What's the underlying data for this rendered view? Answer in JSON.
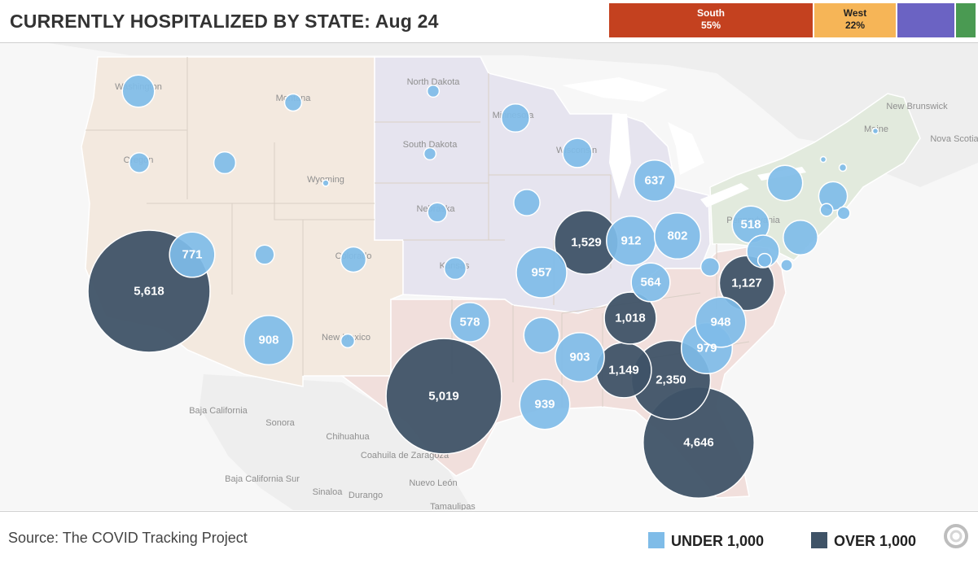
{
  "header": {
    "title": "CURRENTLY HOSPITALIZED BY STATE: Aug 24",
    "regions": [
      {
        "name": "South",
        "share": "55%",
        "color": "#c4411f",
        "text_color": "#ffffff"
      },
      {
        "name": "West",
        "share": "22%",
        "color": "#f6b557",
        "text_color": "#222222"
      },
      {
        "name": "",
        "share": "",
        "color": "#6b63c3",
        "text_color": "#ffffff"
      },
      {
        "name": "",
        "share": "",
        "color": "#4a9a52",
        "text_color": "#ffffff"
      }
    ]
  },
  "map": {
    "colors": {
      "under": "#7fbce8",
      "over": "#3f5367",
      "west_fill": "#f3e9df",
      "midwest_fill": "#e6e4ef",
      "south_fill": "#f1dfdc",
      "northeast_fill": "#e2eadd",
      "land": "#efefef",
      "water": "#ffffff"
    },
    "place_labels": [
      "Washington",
      "Oregon",
      "Montana",
      "Wyoming",
      "North Dakota",
      "South Dakota",
      "Nebraska",
      "Kansas",
      "Minnesota",
      "Wisconsin",
      "Colorado",
      "New Mexico",
      "Pennsylvania",
      "Maine",
      "New Brunswick",
      "Nova Scotia",
      "Baja California",
      "Sonora",
      "Chihuahua",
      "Coahuila de Zaragoza",
      "Baja California Sur",
      "Sinaloa",
      "Durango",
      "Nuevo León",
      "Tamaulipas"
    ],
    "bubbles": [
      {
        "state": "CA",
        "value": 5618,
        "label": "5,618",
        "category": "over"
      },
      {
        "state": "TX",
        "value": 5019,
        "label": "5,019",
        "category": "over"
      },
      {
        "state": "FL",
        "value": 4646,
        "label": "4,646",
        "category": "over"
      },
      {
        "state": "GA",
        "value": 2350,
        "label": "2,350",
        "category": "over"
      },
      {
        "state": "IL",
        "value": 1529,
        "label": "1,529",
        "category": "over"
      },
      {
        "state": "AL",
        "value": 1149,
        "label": "1,149",
        "category": "over"
      },
      {
        "state": "VA",
        "value": 1127,
        "label": "1,127",
        "category": "over"
      },
      {
        "state": "TN",
        "value": 1018,
        "label": "1,018",
        "category": "over"
      },
      {
        "state": "SC",
        "value": 979,
        "label": "979",
        "category": "under"
      },
      {
        "state": "MO",
        "value": 957,
        "label": "957",
        "category": "under"
      },
      {
        "state": "NC",
        "value": 948,
        "label": "948",
        "category": "under"
      },
      {
        "state": "LA",
        "value": 939,
        "label": "939",
        "category": "under"
      },
      {
        "state": "IN",
        "value": 912,
        "label": "912",
        "category": "under"
      },
      {
        "state": "AZ",
        "value": 908,
        "label": "908",
        "category": "under"
      },
      {
        "state": "MS",
        "value": 903,
        "label": "903",
        "category": "under"
      },
      {
        "state": "OH",
        "value": 802,
        "label": "802",
        "category": "under"
      },
      {
        "state": "NV",
        "value": 771,
        "label": "771",
        "category": "under"
      },
      {
        "state": "MI",
        "value": 637,
        "label": "637",
        "category": "under"
      },
      {
        "state": "OK",
        "value": 578,
        "label": "578",
        "category": "under"
      },
      {
        "state": "KY",
        "value": 564,
        "label": "564",
        "category": "under"
      },
      {
        "state": "PA",
        "value": 518,
        "label": "518",
        "category": "under"
      },
      {
        "state": "NY",
        "value": 470,
        "label": "",
        "category": "under"
      },
      {
        "state": "NJ",
        "value": 450,
        "label": "",
        "category": "under"
      },
      {
        "state": "MD",
        "value": 400,
        "label": "",
        "category": "under"
      },
      {
        "state": "WA",
        "value": 390,
        "label": "",
        "category": "under"
      },
      {
        "state": "AR",
        "value": 470,
        "label": "",
        "category": "under"
      },
      {
        "state": "MN",
        "value": 300,
        "label": "",
        "category": "under"
      },
      {
        "state": "WI",
        "value": 320,
        "label": "",
        "category": "under"
      },
      {
        "state": "IA",
        "value": 260,
        "label": "",
        "category": "under"
      },
      {
        "state": "MA",
        "value": 310,
        "label": "",
        "category": "under"
      },
      {
        "state": "CO",
        "value": 240,
        "label": "",
        "category": "under"
      },
      {
        "state": "ID",
        "value": 180,
        "label": "",
        "category": "under"
      },
      {
        "state": "KS",
        "value": 180,
        "label": "",
        "category": "under"
      },
      {
        "state": "OR",
        "value": 150,
        "label": "",
        "category": "under"
      },
      {
        "state": "WV",
        "value": 130,
        "label": "",
        "category": "under"
      },
      {
        "state": "NE",
        "value": 140,
        "label": "",
        "category": "under"
      },
      {
        "state": "UT",
        "value": 140,
        "label": "",
        "category": "under"
      },
      {
        "state": "MT",
        "value": 110,
        "label": "",
        "category": "under"
      },
      {
        "state": "NM",
        "value": 70,
        "label": "",
        "category": "under"
      },
      {
        "state": "CT",
        "value": 60,
        "label": "",
        "category": "under"
      },
      {
        "state": "RI",
        "value": 60,
        "label": "",
        "category": "under"
      },
      {
        "state": "DE",
        "value": 50,
        "label": "",
        "category": "under"
      },
      {
        "state": "ND",
        "value": 55,
        "label": "",
        "category": "under"
      },
      {
        "state": "SD",
        "value": 55,
        "label": "",
        "category": "under"
      },
      {
        "state": "NH",
        "value": 20,
        "label": "",
        "category": "under"
      },
      {
        "state": "VT",
        "value": 10,
        "label": "",
        "category": "under"
      },
      {
        "state": "ME",
        "value": 8,
        "label": "",
        "category": "under"
      },
      {
        "state": "WY",
        "value": 15,
        "label": "",
        "category": "under"
      },
      {
        "state": "DC",
        "value": 70,
        "label": "",
        "category": "under"
      }
    ]
  },
  "footer": {
    "source": "Source: The COVID Tracking Project",
    "legend_under": "UNDER 1,000",
    "legend_over": "OVER 1,000",
    "logo_icon": "covid-tracking-logo-icon"
  }
}
